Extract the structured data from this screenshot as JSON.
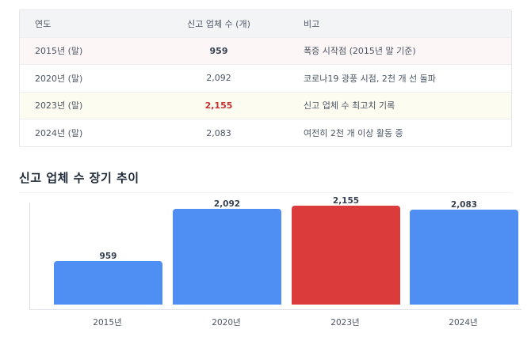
{
  "table": {
    "headers": [
      "연도",
      "신고 업체 수 (개)",
      "비고"
    ],
    "rows": [
      {
        "year": "2015년 (말)",
        "count": "959",
        "note": "폭증 시작점 (2015년 말 기준)"
      },
      {
        "year": "2020년 (말)",
        "count": "2,092",
        "note": "코로나19 광풍 시점, 2천 개 선 돌파"
      },
      {
        "year": "2023년 (말)",
        "count": "2,155",
        "note": "신고 업체 수 최고치 기록"
      },
      {
        "year": "2024년 (말)",
        "count": "2,083",
        "note": "여전히 2천 개 이상 활동 중"
      }
    ],
    "row_colors": [
      "#fdf6f6",
      "#ffffff",
      "#fcfcf0",
      "#ffffff"
    ]
  },
  "section": {
    "title": "신고 업체 수 장기 추이"
  },
  "chart_data": {
    "type": "bar",
    "title": "신고 업체 수 장기 추이",
    "categories": [
      "2015년",
      "2020년",
      "2023년",
      "2024년"
    ],
    "values": [
      959,
      2092,
      2155,
      2083
    ],
    "value_labels": [
      "959",
      "2,092",
      "2,155",
      "2,083"
    ],
    "colors": [
      "#4f8ef3",
      "#4f8ef3",
      "#dc3b3b",
      "#4f8ef3"
    ],
    "xlabel": "",
    "ylabel": "",
    "ylim": [
      0,
      2250
    ],
    "grid": false,
    "legend": "none",
    "highlight_index": 2
  }
}
